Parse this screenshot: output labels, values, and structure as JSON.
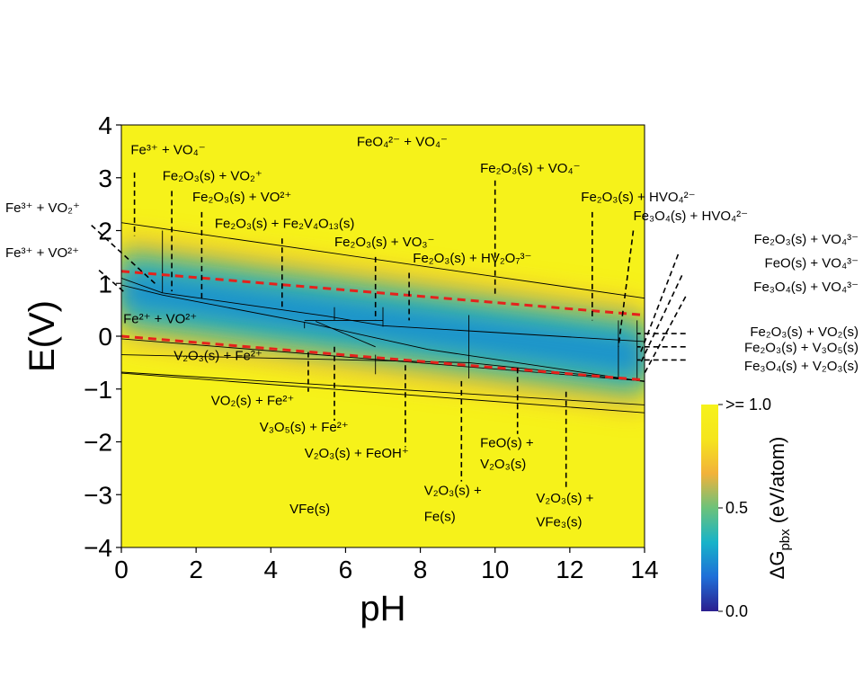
{
  "chart_data": {
    "type": "heatmap",
    "title": "",
    "xlabel": "pH",
    "ylabel": "E(V)",
    "xlim": [
      0,
      14
    ],
    "ylim": [
      -4,
      4
    ],
    "x_ticks": [
      "0",
      "2",
      "4",
      "6",
      "8",
      "10",
      "12",
      "14"
    ],
    "y_ticks": [
      "4",
      "3",
      "2",
      "1",
      "0",
      "−1",
      "−2",
      "−3",
      "−4"
    ],
    "colorbar": {
      "label": "ΔG_pbx (eV/atom)",
      "label_main": "ΔG",
      "label_sub": "pbx",
      "label_unit": " (eV/atom)",
      "ticks": [
        ">= 1.0",
        "0.5",
        "0.0"
      ],
      "range": [
        0.0,
        1.0
      ],
      "colors": [
        "#2b1f8f",
        "#1f6fd8",
        "#17b3c9",
        "#6cc27a",
        "#f2b23a",
        "#f5e51c",
        "#f6f21a"
      ]
    },
    "water_stability_lines": {
      "style": "red-dashed",
      "color": "#e5221c",
      "upper": [
        [
          0,
          1.23
        ],
        [
          14,
          0.4
        ]
      ],
      "lower": [
        [
          0,
          0.0
        ],
        [
          14,
          -0.83
        ]
      ]
    },
    "heat_band": {
      "description": "",
      "center": [
        [
          0,
          0.9
        ],
        [
          14,
          -0.4
        ]
      ],
      "core_min": 0.0
    },
    "boundaries": [
      [
        [
          0,
          2.15
        ],
        [
          14,
          0.72
        ]
      ],
      [
        [
          0,
          1.1
        ],
        [
          1.1,
          0.82
        ],
        [
          5.5,
          0.38
        ],
        [
          7.0,
          0.2
        ],
        [
          14,
          -0.1
        ]
      ],
      [
        [
          0,
          0.97
        ],
        [
          1.1,
          0.78
        ],
        [
          5.0,
          0.25
        ],
        [
          8.2,
          -0.25
        ],
        [
          14,
          -0.86
        ]
      ],
      [
        [
          0,
          -0.05
        ],
        [
          14,
          -0.85
        ]
      ],
      [
        [
          0,
          -0.35
        ],
        [
          9.3,
          -0.5
        ],
        [
          14,
          -0.85
        ]
      ],
      [
        [
          0,
          -0.68
        ],
        [
          14,
          -1.3
        ]
      ],
      [
        [
          0,
          -0.7
        ],
        [
          14,
          -1.45
        ]
      ],
      [
        [
          1.1,
          2.0
        ],
        [
          1.1,
          0.82
        ]
      ],
      [
        [
          4.9,
          0.27
        ],
        [
          4.9,
          0.15
        ]
      ],
      [
        [
          5.7,
          0.55
        ],
        [
          5.7,
          0.3
        ]
      ],
      [
        [
          7.0,
          0.55
        ],
        [
          7.0,
          0.18
        ]
      ],
      [
        [
          9.3,
          0.4
        ],
        [
          9.3,
          -0.8
        ]
      ],
      [
        [
          6.8,
          -0.35
        ],
        [
          6.8,
          -0.72
        ]
      ],
      [
        [
          13.3,
          0.3
        ],
        [
          13.3,
          -0.78
        ]
      ],
      [
        [
          13.8,
          0.3
        ],
        [
          13.8,
          -0.82
        ]
      ],
      [
        [
          4.9,
          0.3
        ],
        [
          7.0,
          0.3
        ]
      ],
      [
        [
          5.2,
          0.28
        ],
        [
          6.8,
          -0.2
        ]
      ]
    ],
    "region_labels": [
      {
        "text": "Fe³⁺ + VO₄⁻",
        "x": 0.25,
        "y": 3.45,
        "leader": [
          [
            0.35,
            3.1
          ],
          [
            0.35,
            1.9
          ]
        ]
      },
      {
        "text": "FeO₄²⁻ + VO₄⁻",
        "x": 6.3,
        "y": 3.6
      },
      {
        "text": "Fe₂O₃(s) + VO₂⁺",
        "x": 1.1,
        "y": 2.95,
        "leader": [
          [
            1.35,
            2.75
          ],
          [
            1.35,
            0.85
          ]
        ]
      },
      {
        "text": "Fe₂O₃(s) + VO₄⁻",
        "x": 9.6,
        "y": 3.1,
        "leader": [
          [
            10.0,
            2.95
          ],
          [
            10.0,
            0.8
          ]
        ]
      },
      {
        "text": "Fe₂O₃(s) + VO²⁺",
        "x": 1.9,
        "y": 2.55,
        "leader": [
          [
            2.15,
            2.35
          ],
          [
            2.15,
            0.7
          ]
        ]
      },
      {
        "text": "Fe₂O₃(s) + HVO₄²⁻",
        "x": 12.3,
        "y": 2.55,
        "leader": [
          [
            12.6,
            2.35
          ],
          [
            12.6,
            0.3
          ]
        ]
      },
      {
        "text": "Fe₂O₃(s) + Fe₂V₄O₁₃(s)",
        "x": 2.5,
        "y": 2.05,
        "leader": [
          [
            4.3,
            1.85
          ],
          [
            4.3,
            0.5
          ]
        ]
      },
      {
        "text": "Fe₃O₄(s) + HVO₄²⁻",
        "x": 13.7,
        "y": 2.2,
        "leader": [
          [
            13.7,
            2.0
          ],
          [
            13.3,
            -0.2
          ]
        ]
      },
      {
        "text": "Fe₂O₃(s) + VO₃⁻",
        "x": 5.7,
        "y": 1.7,
        "leader": [
          [
            6.8,
            1.5
          ],
          [
            6.8,
            0.3
          ]
        ]
      },
      {
        "text": "Fe₂O₃(s) + HV₂O₇³⁻",
        "x": 7.8,
        "y": 1.4,
        "leader": [
          [
            7.7,
            1.2
          ],
          [
            7.7,
            0.3
          ]
        ]
      },
      {
        "text": "Fe²⁺ + VO²⁺",
        "x": 0.05,
        "y": 0.25
      },
      {
        "text": "V₂O₃(s) + Fe²⁺",
        "x": 1.4,
        "y": -0.45
      },
      {
        "text": "VO₂(s) + Fe²⁺",
        "x": 2.4,
        "y": -1.3,
        "leader": [
          [
            5.0,
            -0.3
          ],
          [
            5.0,
            -1.05
          ]
        ]
      },
      {
        "text": "V₃O₅(s) + Fe²⁺",
        "x": 3.7,
        "y": -1.8,
        "leader": [
          [
            5.7,
            -0.2
          ],
          [
            5.7,
            -1.6
          ]
        ]
      },
      {
        "text": "V₂O₃(s) + FeOH⁺",
        "x": 4.9,
        "y": -2.3,
        "leader": [
          [
            7.6,
            -0.55
          ],
          [
            7.6,
            -2.1
          ]
        ]
      },
      {
        "text": "FeO(s) +",
        "x": 9.6,
        "y": -2.1,
        "leader": [
          [
            10.6,
            -0.6
          ],
          [
            10.6,
            -1.85
          ]
        ]
      },
      {
        "text": "V₂O₃(s)",
        "x": 9.6,
        "y": -2.5
      },
      {
        "text": "V₂O₃(s) +",
        "x": 8.1,
        "y": -3.0,
        "leader": [
          [
            9.1,
            -0.85
          ],
          [
            9.1,
            -2.75
          ]
        ]
      },
      {
        "text": "Fe(s)",
        "x": 8.1,
        "y": -3.5
      },
      {
        "text": "V₂O₃(s) +",
        "x": 11.1,
        "y": -3.15,
        "leader": [
          [
            11.9,
            -1.05
          ],
          [
            11.9,
            -2.9
          ]
        ]
      },
      {
        "text": "VFe₃(s)",
        "x": 11.1,
        "y": -3.6
      },
      {
        "text": "VFe(s)",
        "x": 4.5,
        "y": -3.35
      }
    ],
    "outside_labels": [
      {
        "text": "Fe³⁺ + VO₂⁺",
        "side": "left",
        "y": 2.35,
        "leader": [
          [
            -0.8,
            2.1
          ],
          [
            0.9,
            1.0
          ]
        ]
      },
      {
        "text": "Fe³⁺ + VO²⁺",
        "side": "left",
        "y": 1.5,
        "leader": [
          [
            -0.6,
            1.25
          ],
          [
            0.1,
            0.82
          ]
        ]
      },
      {
        "text": "Fe₂O₃(s) + VO₄³⁻",
        "side": "right",
        "y": 1.75,
        "leader": [
          [
            14.9,
            1.55
          ],
          [
            13.9,
            -0.3
          ]
        ]
      },
      {
        "text": "FeO(s) + VO₄³⁻",
        "side": "right",
        "y": 1.3,
        "leader": [
          [
            15.0,
            1.15
          ],
          [
            13.9,
            -0.5
          ]
        ]
      },
      {
        "text": "Fe₃O₄(s) + VO₄³⁻",
        "side": "right",
        "y": 0.85,
        "leader": [
          [
            15.1,
            0.75
          ],
          [
            14.0,
            -0.7
          ]
        ]
      },
      {
        "text": "Fe₂O₃(s) + VO₂(s)",
        "side": "right",
        "y": 0.0,
        "leader": [
          [
            15.1,
            0.05
          ],
          [
            13.8,
            0.05
          ]
        ]
      },
      {
        "text": "Fe₂O₃(s) + V₃O₅(s)",
        "side": "right",
        "y": -0.3,
        "leader": [
          [
            15.1,
            -0.2
          ],
          [
            13.8,
            -0.2
          ]
        ]
      },
      {
        "text": "Fe₃O₄(s) + V₂O₃(s)",
        "side": "right",
        "y": -0.65,
        "leader": [
          [
            15.1,
            -0.45
          ],
          [
            13.8,
            -0.45
          ]
        ]
      }
    ]
  }
}
